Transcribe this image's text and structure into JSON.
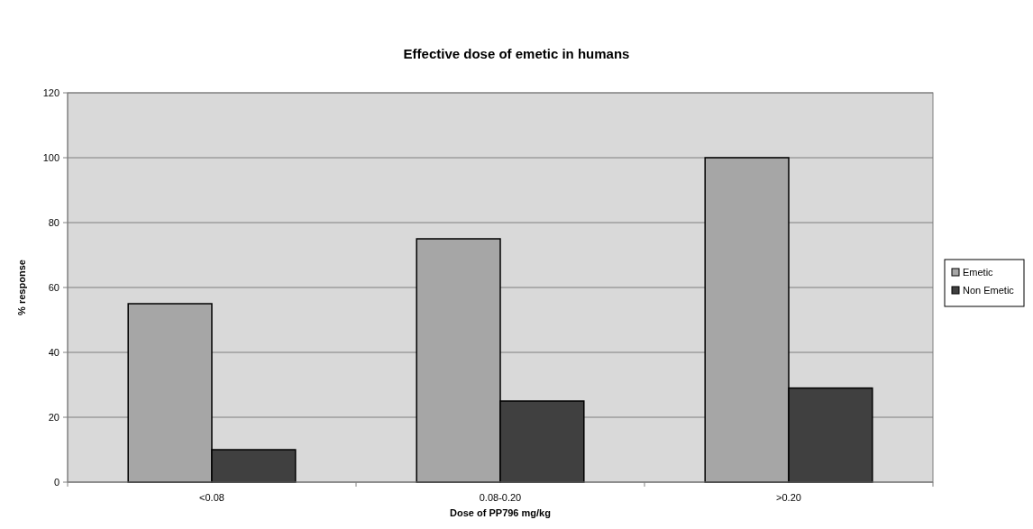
{
  "chart_data": {
    "type": "bar",
    "title": "Effective dose of emetic in humans",
    "xlabel": "Dose of PP796 mg/kg",
    "ylabel": "% response",
    "categories": [
      "<0.08",
      "0.08-0.20",
      ">0.20"
    ],
    "series": [
      {
        "name": "Emetic",
        "color": "#a6a6a6",
        "values": [
          55,
          75,
          100
        ]
      },
      {
        "name": "Non Emetic",
        "color": "#404040",
        "values": [
          10,
          25,
          29
        ]
      }
    ],
    "ylim": [
      0,
      120
    ],
    "yticks": [
      0,
      20,
      40,
      60,
      80,
      100,
      120
    ],
    "grid": "y",
    "legend": "right"
  }
}
